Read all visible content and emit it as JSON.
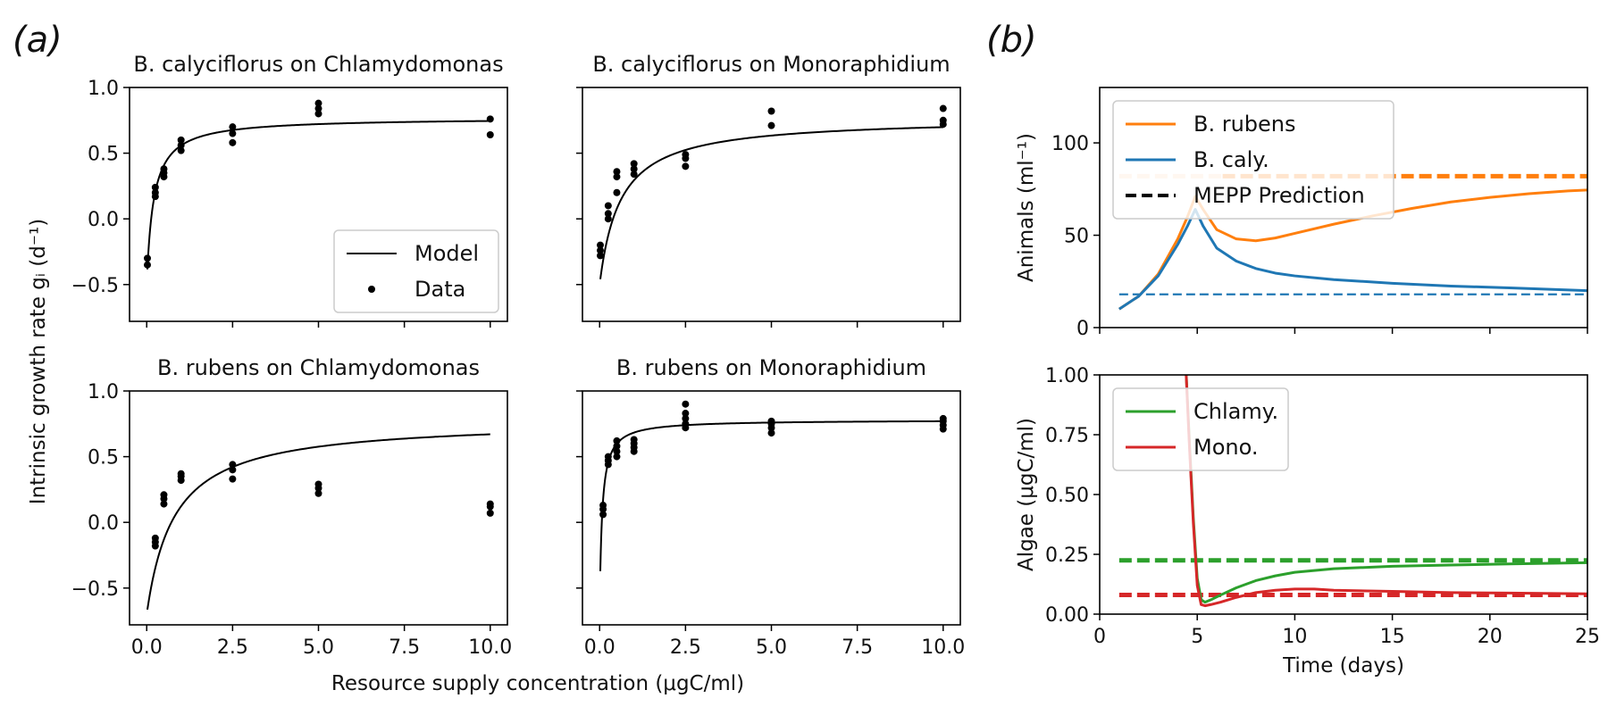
{
  "panel_labels": {
    "a": "(a)",
    "b": "(b)"
  },
  "shared_labels": {
    "ylabel_a": "Intrinsic growth rate gᵢ (d⁻¹)",
    "xlabel_a": "Resource supply concentration (μgC/ml)"
  },
  "colors": {
    "orange": "#ff7f0e",
    "blue": "#1f77b4",
    "green": "#2ca02c",
    "red": "#d62728",
    "black": "#000000"
  },
  "chart_data": [
    {
      "id": "calyciflorus_chlamy",
      "type": "scatter",
      "title": "B. calyciflorus on Chlamydomonas",
      "xlim": [
        -0.5,
        10.5
      ],
      "ylim": [
        -0.78,
        1.0
      ],
      "xticks": [
        0,
        2.5,
        5,
        7.5,
        10
      ],
      "xtick_labels": [],
      "yticks": [
        -0.5,
        0,
        0.5,
        1.0
      ],
      "ytick_labels": [
        "−0.5",
        "0.0",
        "0.5",
        "1.0"
      ],
      "model": {
        "gmax": 0.77,
        "K": 0.2,
        "m": 0.5,
        "x_start": 0.02
      },
      "data": {
        "x": [
          0.02,
          0.02,
          0.25,
          0.25,
          0.25,
          0.5,
          0.5,
          0.5,
          1.0,
          1.0,
          1.0,
          2.5,
          2.5,
          2.5,
          5.0,
          5.0,
          5.0,
          10.0,
          10.0
        ],
        "y": [
          -0.3,
          -0.35,
          0.17,
          0.2,
          0.24,
          0.32,
          0.35,
          0.38,
          0.52,
          0.56,
          0.6,
          0.58,
          0.65,
          0.7,
          0.8,
          0.84,
          0.88,
          0.76,
          0.64
        ]
      },
      "legend": {
        "entries": [
          "Model",
          "Data"
        ],
        "loc": "lower-right"
      }
    },
    {
      "id": "calyciflorus_mono",
      "type": "scatter",
      "title": "B. calyciflorus on Monoraphidium",
      "xlim": [
        -0.5,
        10.5
      ],
      "ylim": [
        -0.78,
        1.0
      ],
      "xticks": [
        0,
        2.5,
        5,
        7.5,
        10
      ],
      "xtick_labels": [],
      "yticks": [
        -0.5,
        0,
        0.5,
        1.0
      ],
      "ytick_labels": [],
      "model": {
        "gmax": 0.77,
        "K": 0.6,
        "m": 0.5,
        "x_start": 0.02
      },
      "data": {
        "x": [
          0.02,
          0.02,
          0.02,
          0.25,
          0.25,
          0.25,
          0.5,
          0.5,
          0.5,
          1.0,
          1.0,
          1.0,
          2.5,
          2.5,
          2.5,
          5.0,
          5.0,
          10.0,
          10.0,
          10.0
        ],
        "y": [
          -0.2,
          -0.24,
          -0.28,
          0.0,
          0.04,
          0.1,
          0.2,
          0.32,
          0.36,
          0.34,
          0.38,
          0.42,
          0.4,
          0.46,
          0.49,
          0.71,
          0.82,
          0.72,
          0.75,
          0.84
        ]
      },
      "legend": null
    },
    {
      "id": "rubens_chlamy",
      "type": "scatter",
      "title": "B. rubens on Chlamydomonas",
      "xlim": [
        -0.5,
        10.5
      ],
      "ylim": [
        -0.78,
        1.0
      ],
      "xticks": [
        0,
        2.5,
        5,
        7.5,
        10
      ],
      "xtick_labels": [
        "0.0",
        "2.5",
        "5.0",
        "7.5",
        "10.0"
      ],
      "yticks": [
        -0.5,
        0,
        0.5,
        1.0
      ],
      "ytick_labels": [
        "−0.5",
        "0.0",
        "0.5",
        "1.0"
      ],
      "model": {
        "gmax": 0.78,
        "K": 0.8,
        "m": 0.7,
        "x_start": 0.02
      },
      "data": {
        "x": [
          0.25,
          0.25,
          0.25,
          0.5,
          0.5,
          0.5,
          1.0,
          1.0,
          1.0,
          2.5,
          2.5,
          2.5,
          5.0,
          5.0,
          5.0,
          10.0,
          10.0,
          10.0
        ],
        "y": [
          -0.12,
          -0.15,
          -0.18,
          0.14,
          0.18,
          0.21,
          0.32,
          0.35,
          0.37,
          0.33,
          0.4,
          0.44,
          0.22,
          0.26,
          0.29,
          0.07,
          0.12,
          0.14
        ]
      },
      "legend": null
    },
    {
      "id": "rubens_mono",
      "type": "scatter",
      "title": "B. rubens on Monoraphidium",
      "xlim": [
        -0.5,
        10.5
      ],
      "ylim": [
        -0.78,
        1.0
      ],
      "xticks": [
        0,
        2.5,
        5,
        7.5,
        10
      ],
      "xtick_labels": [
        "0.0",
        "2.5",
        "5.0",
        "7.5",
        "10.0"
      ],
      "yticks": [
        -0.5,
        0,
        0.5,
        1.0
      ],
      "ytick_labels": [],
      "model": {
        "gmax": 0.78,
        "K": 0.07,
        "m": 0.7,
        "x_start": 0.02
      },
      "data": {
        "x": [
          0.1,
          0.1,
          0.1,
          0.25,
          0.25,
          0.25,
          0.5,
          0.5,
          0.5,
          0.5,
          1.0,
          1.0,
          1.0,
          1.0,
          2.5,
          2.5,
          2.5,
          2.5,
          2.5,
          5.0,
          5.0,
          5.0,
          5.0,
          10.0,
          10.0,
          10.0,
          10.0
        ],
        "y": [
          0.06,
          0.1,
          0.13,
          0.44,
          0.47,
          0.5,
          0.5,
          0.54,
          0.58,
          0.62,
          0.54,
          0.57,
          0.6,
          0.63,
          0.72,
          0.75,
          0.79,
          0.83,
          0.9,
          0.68,
          0.72,
          0.75,
          0.77,
          0.71,
          0.74,
          0.77,
          0.79
        ]
      },
      "legend": null
    },
    {
      "id": "animals",
      "type": "line",
      "title": "",
      "xlim": [
        0,
        25
      ],
      "ylim": [
        0,
        130
      ],
      "xticks": [
        0,
        5,
        10,
        15,
        20,
        25
      ],
      "xtick_labels": [],
      "yticks": [
        0,
        50,
        100
      ],
      "ytick_labels": [
        "0",
        "50",
        "100"
      ],
      "ylabel": "Animals (ml⁻¹)",
      "series": [
        {
          "name": "B. rubens",
          "color": "#ff7f0e",
          "x": [
            1,
            2,
            3,
            4,
            4.5,
            4.9,
            5.3,
            6,
            7,
            8,
            9,
            10,
            12,
            14,
            16,
            18,
            20,
            22,
            24,
            25
          ],
          "y": [
            10,
            17,
            29,
            48,
            60,
            71,
            64,
            53,
            48,
            47,
            48.5,
            51,
            56,
            60.5,
            64.5,
            68,
            70.5,
            72.5,
            74,
            74.5
          ]
        },
        {
          "name": "B. caly.",
          "color": "#1f77b4",
          "x": [
            1,
            2,
            3,
            4,
            4.5,
            4.9,
            5.3,
            6,
            7,
            8,
            9,
            10,
            12,
            15,
            18,
            21,
            25
          ],
          "y": [
            10,
            17,
            28,
            45,
            55,
            64,
            55,
            43,
            36,
            32,
            29.5,
            28,
            26,
            24,
            22.5,
            21.5,
            20
          ]
        }
      ],
      "predictions": [
        {
          "series": "B. rubens",
          "color": "#ff7f0e",
          "y": 82,
          "x_range": [
            1,
            25
          ],
          "faded_until": 6.3
        },
        {
          "series": "B. caly.",
          "color": "#1f77b4",
          "y": 18,
          "x_range": [
            1,
            25
          ],
          "faded_until": 0
        }
      ],
      "legend": {
        "entries": [
          "B. rubens",
          "B. caly.",
          "MEPP Prediction"
        ],
        "loc": "upper-left"
      }
    },
    {
      "id": "algae",
      "type": "line",
      "title": "",
      "xlim": [
        0,
        25
      ],
      "ylim": [
        0,
        1.0
      ],
      "xticks": [
        0,
        5,
        10,
        15,
        20,
        25
      ],
      "xtick_labels": [
        "0",
        "5",
        "10",
        "15",
        "20",
        "25"
      ],
      "yticks": [
        0,
        0.25,
        0.5,
        0.75,
        1.0
      ],
      "ytick_labels": [
        "0.00",
        "0.25",
        "0.50",
        "0.75",
        "1.00"
      ],
      "ylabel": "Algae (μgC/ml)",
      "xlabel": "Time (days)",
      "series": [
        {
          "name": "Chlamy.",
          "color": "#2ca02c",
          "x": [
            4.4,
            4.6,
            4.8,
            5.0,
            5.2,
            5.4,
            5.7,
            6.2,
            7,
            8,
            9,
            10,
            12,
            15,
            18,
            21,
            25
          ],
          "y": [
            1.06,
            0.72,
            0.4,
            0.15,
            0.06,
            0.05,
            0.06,
            0.08,
            0.11,
            0.14,
            0.16,
            0.175,
            0.19,
            0.2,
            0.205,
            0.21,
            0.215
          ]
        },
        {
          "name": "Mono.",
          "color": "#d62728",
          "x": [
            4.4,
            4.6,
            4.8,
            5.0,
            5.2,
            5.4,
            5.7,
            6.2,
            7,
            8,
            9,
            10,
            11,
            12,
            15,
            18,
            21,
            25
          ],
          "y": [
            1.06,
            0.7,
            0.38,
            0.12,
            0.04,
            0.035,
            0.04,
            0.05,
            0.07,
            0.09,
            0.1,
            0.105,
            0.105,
            0.1,
            0.095,
            0.09,
            0.088,
            0.085
          ]
        }
      ],
      "predictions": [
        {
          "series": "Chlamy.",
          "color": "#2ca02c",
          "y": 0.225,
          "x_range": [
            1,
            25
          ],
          "faded_until": 0
        },
        {
          "series": "Mono.",
          "color": "#d62728",
          "y": 0.08,
          "x_range": [
            1,
            25
          ],
          "faded_until": 0
        }
      ],
      "legend": {
        "entries": [
          "Chlamy.",
          "Mono."
        ],
        "loc": "upper-left"
      }
    }
  ]
}
